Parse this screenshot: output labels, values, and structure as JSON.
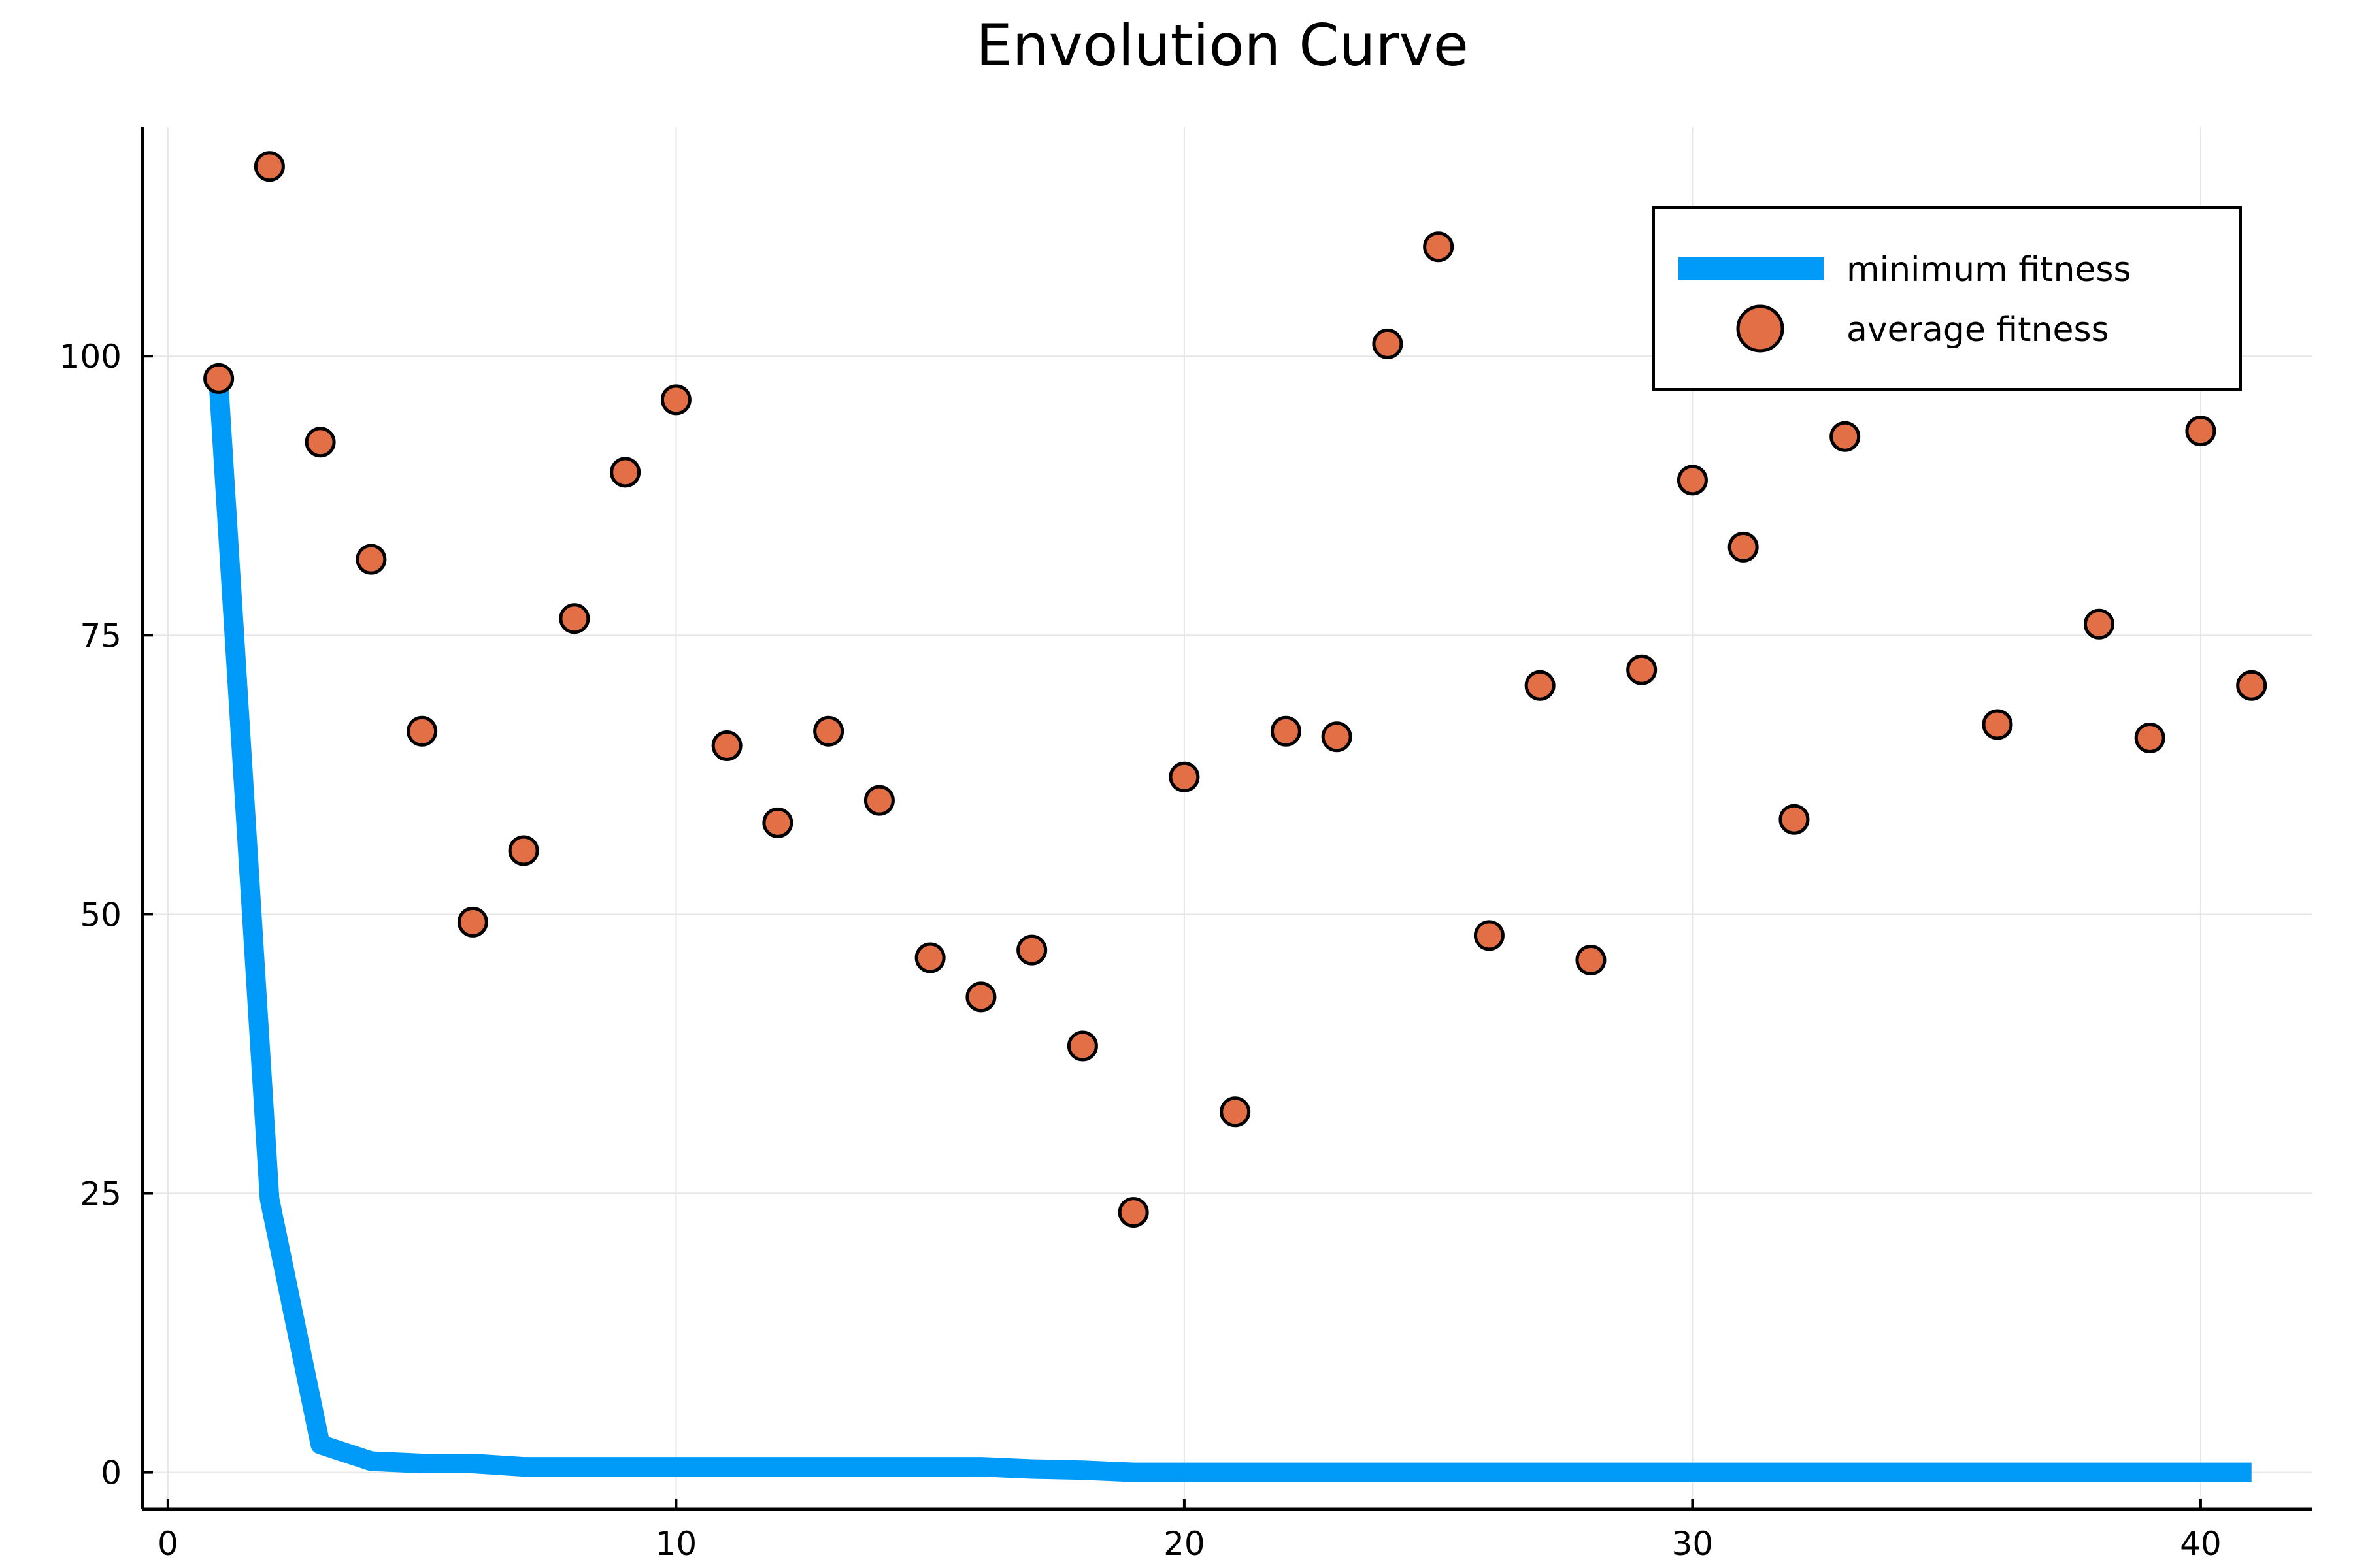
{
  "chart_data": {
    "type": "line+scatter",
    "title": "Envolution Curve",
    "xlabel": "",
    "ylabel": "",
    "xlim": [
      -0.5,
      42.2
    ],
    "ylim": [
      -3.3,
      120.5
    ],
    "xticks": [
      0,
      10,
      20,
      30,
      40
    ],
    "yticks": [
      0,
      25,
      50,
      75,
      100
    ],
    "grid": true,
    "legend_position": "top-right",
    "colors": {
      "minimum": "#009af9",
      "average": "#e26f46"
    },
    "series": [
      {
        "name": "minimum fitness",
        "kind": "line",
        "x": [
          1,
          2,
          3,
          4,
          5,
          6,
          7,
          8,
          9,
          10,
          11,
          12,
          13,
          14,
          15,
          16,
          17,
          18,
          19,
          20,
          21,
          22,
          23,
          24,
          25,
          26,
          27,
          28,
          29,
          30,
          31,
          32,
          33,
          34,
          35,
          36,
          37,
          38,
          39,
          40,
          41
        ],
        "values": [
          97.5,
          24.5,
          2.5,
          1.0,
          0.8,
          0.8,
          0.5,
          0.5,
          0.5,
          0.5,
          0.5,
          0.5,
          0.5,
          0.5,
          0.5,
          0.5,
          0.3,
          0.2,
          0.0,
          0.0,
          0.0,
          0.0,
          0.0,
          0.0,
          0.0,
          0.0,
          0.0,
          0.0,
          0.0,
          0.0,
          0.0,
          0.0,
          0.0,
          0.0,
          0.0,
          0.0,
          0.0,
          0.0,
          0.0,
          0.0,
          0.0
        ]
      },
      {
        "name": "average fitness",
        "kind": "scatter",
        "x": [
          1,
          2,
          3,
          4,
          5,
          6,
          7,
          8,
          9,
          10,
          11,
          12,
          13,
          14,
          15,
          16,
          17,
          18,
          19,
          20,
          21,
          22,
          23,
          24,
          25,
          26,
          27,
          28,
          29,
          30,
          31,
          32,
          33,
          36,
          38,
          39,
          40,
          41
        ],
        "values": [
          98.0,
          117.0,
          92.3,
          81.8,
          66.4,
          49.3,
          55.7,
          76.5,
          89.6,
          96.1,
          65.1,
          58.2,
          66.4,
          60.2,
          46.1,
          42.6,
          46.8,
          38.2,
          23.3,
          62.3,
          32.3,
          66.4,
          65.9,
          101.1,
          109.8,
          48.1,
          70.5,
          45.9,
          71.9,
          88.9,
          82.9,
          58.5,
          92.8,
          67.0,
          76.0,
          65.8,
          93.3,
          70.5
        ]
      }
    ]
  }
}
